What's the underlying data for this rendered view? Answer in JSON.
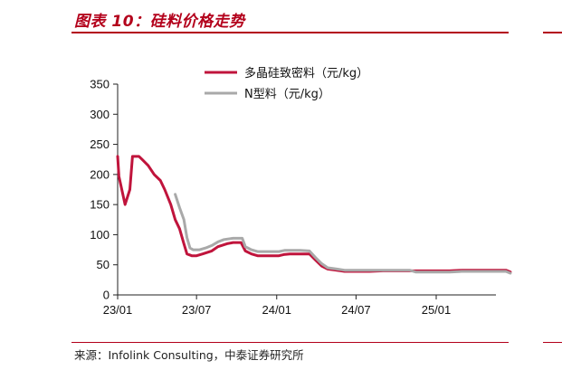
{
  "header": {
    "title": "图表 10：硅料价格走势"
  },
  "footer": {
    "source": "来源：Infolink Consulting，中泰证券研究所"
  },
  "colors": {
    "brand": "#b3001b",
    "series_poly": "#c0143c",
    "series_n": "#a9a9a9"
  },
  "chart_data": {
    "type": "line",
    "title": "",
    "xlabel": "",
    "ylabel": "",
    "ylim": [
      0,
      350
    ],
    "yticks": [
      "0",
      "50",
      "100",
      "150",
      "200",
      "250",
      "300",
      "350"
    ],
    "xlim": [
      "2023-01-01",
      "2025-06-20"
    ],
    "xticks": [
      {
        "date": "2023-01-01",
        "label": "23/01"
      },
      {
        "date": "2023-07-01",
        "label": "23/07"
      },
      {
        "date": "2024-01-01",
        "label": "24/01"
      },
      {
        "date": "2024-07-01",
        "label": "24/07"
      },
      {
        "date": "2025-01-01",
        "label": "25/01"
      }
    ],
    "grid": false,
    "legend_position": "top-right",
    "series": [
      {
        "name": "多晶硅致密料（元/kg）",
        "color": "#c0143c",
        "points": [
          [
            "2023-01-01",
            230
          ],
          [
            "2023-01-04",
            197
          ],
          [
            "2023-01-18",
            150
          ],
          [
            "2023-01-29",
            175
          ],
          [
            "2023-02-04",
            230
          ],
          [
            "2023-02-19",
            230
          ],
          [
            "2023-02-26",
            225
          ],
          [
            "2023-03-12",
            215
          ],
          [
            "2023-03-26",
            200
          ],
          [
            "2023-04-09",
            190
          ],
          [
            "2023-04-19",
            175
          ],
          [
            "2023-05-03",
            150
          ],
          [
            "2023-05-13",
            125
          ],
          [
            "2023-05-23",
            110
          ],
          [
            "2023-06-02",
            85
          ],
          [
            "2023-06-09",
            68
          ],
          [
            "2023-06-20",
            65
          ],
          [
            "2023-07-01",
            65
          ],
          [
            "2023-07-15",
            68
          ],
          [
            "2023-08-05",
            73
          ],
          [
            "2023-08-19",
            80
          ],
          [
            "2023-09-09",
            85
          ],
          [
            "2023-09-23",
            87
          ],
          [
            "2023-10-11",
            87
          ],
          [
            "2023-10-21",
            73
          ],
          [
            "2023-11-04",
            68
          ],
          [
            "2023-11-18",
            65
          ],
          [
            "2023-12-16",
            65
          ],
          [
            "2024-01-06",
            65
          ],
          [
            "2024-01-17",
            67
          ],
          [
            "2024-01-31",
            68
          ],
          [
            "2024-02-28",
            68
          ],
          [
            "2024-03-16",
            68
          ],
          [
            "2024-03-30",
            58
          ],
          [
            "2024-04-13",
            48
          ],
          [
            "2024-04-27",
            43
          ],
          [
            "2024-05-18",
            41
          ],
          [
            "2024-06-05",
            39
          ],
          [
            "2024-07-01",
            39
          ],
          [
            "2024-08-01",
            39
          ],
          [
            "2024-09-01",
            40
          ],
          [
            "2024-10-01",
            40
          ],
          [
            "2024-11-01",
            40
          ],
          [
            "2024-12-01",
            40
          ],
          [
            "2025-01-01",
            40
          ],
          [
            "2025-02-01",
            40
          ],
          [
            "2025-03-01",
            41
          ],
          [
            "2025-04-01",
            41
          ],
          [
            "2025-05-01",
            41
          ],
          [
            "2025-06-10",
            41
          ],
          [
            "2025-06-20",
            38
          ]
        ]
      },
      {
        "name": "N型料（元/kg）",
        "color": "#a9a9a9",
        "points": [
          [
            "2023-05-13",
            167
          ],
          [
            "2023-05-23",
            145
          ],
          [
            "2023-06-02",
            125
          ],
          [
            "2023-06-09",
            95
          ],
          [
            "2023-06-16",
            78
          ],
          [
            "2023-06-23",
            75
          ],
          [
            "2023-07-08",
            75
          ],
          [
            "2023-07-22",
            78
          ],
          [
            "2023-08-05",
            82
          ],
          [
            "2023-08-19",
            88
          ],
          [
            "2023-09-02",
            92
          ],
          [
            "2023-09-23",
            94
          ],
          [
            "2023-10-07",
            94
          ],
          [
            "2023-10-14",
            94
          ],
          [
            "2023-10-21",
            80
          ],
          [
            "2023-11-04",
            75
          ],
          [
            "2023-11-18",
            72
          ],
          [
            "2023-12-16",
            72
          ],
          [
            "2024-01-06",
            72
          ],
          [
            "2024-01-20",
            74
          ],
          [
            "2024-02-03",
            74
          ],
          [
            "2024-02-24",
            74
          ],
          [
            "2024-03-16",
            73
          ],
          [
            "2024-03-30",
            62
          ],
          [
            "2024-04-13",
            52
          ],
          [
            "2024-04-27",
            45
          ],
          [
            "2024-05-18",
            43
          ],
          [
            "2024-06-05",
            41
          ],
          [
            "2024-07-01",
            41
          ],
          [
            "2024-08-01",
            41
          ],
          [
            "2024-09-01",
            41
          ],
          [
            "2024-10-01",
            41
          ],
          [
            "2024-11-01",
            41
          ],
          [
            "2024-11-15",
            38
          ],
          [
            "2024-12-01",
            38
          ],
          [
            "2025-01-01",
            38
          ],
          [
            "2025-02-01",
            38
          ],
          [
            "2025-03-01",
            39
          ],
          [
            "2025-04-01",
            39
          ],
          [
            "2025-05-01",
            39
          ],
          [
            "2025-06-10",
            39
          ],
          [
            "2025-06-20",
            36
          ]
        ]
      }
    ]
  }
}
